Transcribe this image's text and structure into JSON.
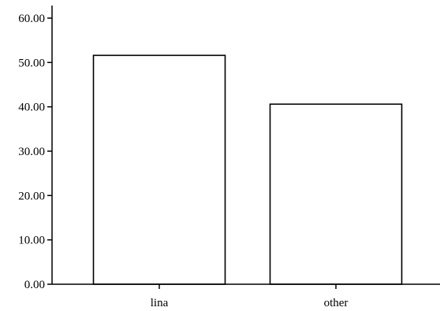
{
  "chart_data": {
    "type": "bar",
    "title": "",
    "xlabel": "",
    "ylabel": "",
    "categories": [
      "lina",
      "other"
    ],
    "values": [
      51.6,
      40.6
    ],
    "ylim": [
      0,
      60
    ],
    "y_ticks": [
      "0.00",
      "10.00",
      "20.00",
      "30.00",
      "40.00",
      "50.00",
      "60.00"
    ],
    "grid": false,
    "legend": "none",
    "colors": {
      "bar_fill": "#ffffff",
      "bar_stroke": "#000000",
      "axis": "#000000"
    }
  }
}
